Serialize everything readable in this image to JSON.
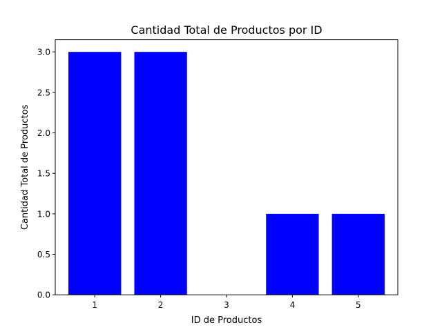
{
  "chart_data": {
    "type": "bar",
    "title": "Cantidad Total de Productos por ID",
    "xlabel": "ID de Productos",
    "ylabel": "Cantidad Total de Productos",
    "categories": [
      "1",
      "2",
      "3",
      "4",
      "5"
    ],
    "values": [
      3,
      3,
      0,
      1,
      1
    ],
    "ylim": [
      0,
      3.15
    ],
    "yticks": [
      "0.0",
      "0.5",
      "1.0",
      "1.5",
      "2.0",
      "2.5",
      "3.0"
    ],
    "bar_color": "#0000ff",
    "grid": false,
    "legend": "none"
  }
}
